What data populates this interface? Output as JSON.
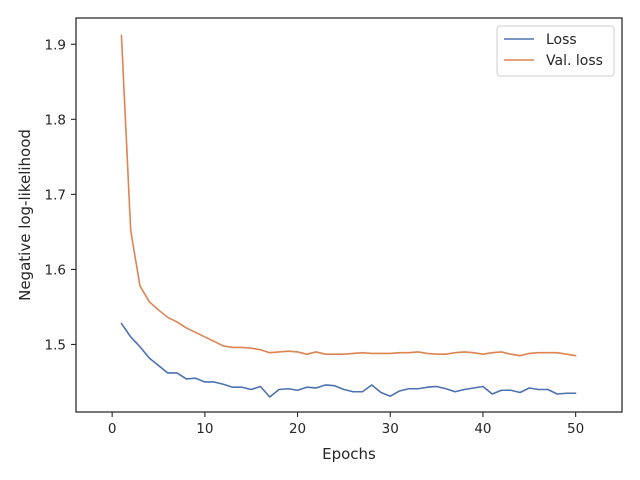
{
  "chart_data": {
    "type": "line",
    "xlabel": "Epochs",
    "ylabel": "Negative log-likelihood",
    "xlim": [
      -3.9,
      55
    ],
    "ylim": [
      1.41,
      1.935
    ],
    "xticks": [
      0,
      10,
      20,
      30,
      40,
      50
    ],
    "yticks": [
      1.5,
      1.6,
      1.7,
      1.8,
      1.9
    ],
    "grid": false,
    "legend_position": "top-right",
    "x": [
      1,
      2,
      3,
      4,
      5,
      6,
      7,
      8,
      9,
      10,
      11,
      12,
      13,
      14,
      15,
      16,
      17,
      18,
      19,
      20,
      21,
      22,
      23,
      24,
      25,
      26,
      27,
      28,
      29,
      30,
      31,
      32,
      33,
      34,
      35,
      36,
      37,
      38,
      39,
      40,
      41,
      42,
      43,
      44,
      45,
      46,
      47,
      48,
      49,
      50
    ],
    "series": [
      {
        "name": "Loss",
        "color": "#4c72b0",
        "values": [
          1.528,
          1.51,
          1.497,
          1.482,
          1.472,
          1.462,
          1.462,
          1.454,
          1.455,
          1.45,
          1.45,
          1.447,
          1.443,
          1.443,
          1.44,
          1.444,
          1.43,
          1.44,
          1.441,
          1.439,
          1.443,
          1.442,
          1.446,
          1.445,
          1.44,
          1.437,
          1.437,
          1.446,
          1.436,
          1.431,
          1.438,
          1.441,
          1.441,
          1.443,
          1.444,
          1.441,
          1.437,
          1.44,
          1.442,
          1.444,
          1.434,
          1.439,
          1.439,
          1.436,
          1.442,
          1.44,
          1.44,
          1.434,
          1.435,
          1.435
        ]
      },
      {
        "name": "Val. loss",
        "color": "#dd8452",
        "values": [
          1.912,
          1.652,
          1.578,
          1.557,
          1.546,
          1.536,
          1.53,
          1.522,
          1.516,
          1.51,
          1.504,
          1.498,
          1.496,
          1.496,
          1.495,
          1.493,
          1.489,
          1.49,
          1.491,
          1.49,
          1.487,
          1.49,
          1.487,
          1.487,
          1.487,
          1.488,
          1.489,
          1.488,
          1.488,
          1.488,
          1.489,
          1.489,
          1.49,
          1.488,
          1.487,
          1.487,
          1.489,
          1.49,
          1.489,
          1.487,
          1.489,
          1.49,
          1.487,
          1.485,
          1.488,
          1.489,
          1.489,
          1.489,
          1.487,
          1.485
        ]
      }
    ]
  }
}
